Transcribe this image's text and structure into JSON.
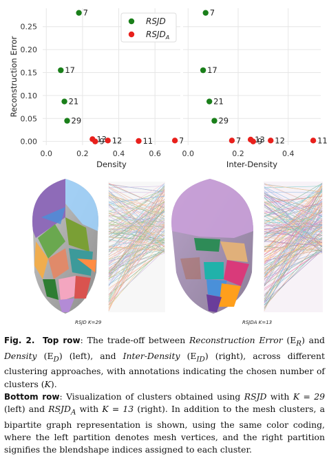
{
  "chart_data": [
    {
      "type": "scatter",
      "title": "",
      "xlabel": "Density",
      "ylabel": "Reconstruction Error",
      "xlim": [
        -0.02,
        0.74
      ],
      "ylim": [
        -0.008,
        0.29
      ],
      "xticks": [
        "0.0",
        "0.2",
        "0.4",
        "0.6"
      ],
      "yticks": [
        "0.00",
        "0.05",
        "0.10",
        "0.15",
        "0.20",
        "0.25"
      ],
      "grid": true,
      "legend_position": "top-right",
      "series": [
        {
          "name": "RSJD",
          "color": "#1a7f1a",
          "points": [
            {
              "x": 0.18,
              "y": 0.28,
              "label": "7"
            },
            {
              "x": 0.08,
              "y": 0.155,
              "label": "17"
            },
            {
              "x": 0.1,
              "y": 0.087,
              "label": "21"
            },
            {
              "x": 0.115,
              "y": 0.045,
              "label": "29"
            }
          ]
        },
        {
          "name": "RSJD_A",
          "color": "#e8201c",
          "points": [
            {
              "x": 0.255,
              "y": 0.005,
              "label": "13"
            },
            {
              "x": 0.27,
              "y": 0.0,
              "label": "9"
            },
            {
              "x": 0.34,
              "y": 0.002,
              "label": "12"
            },
            {
              "x": 0.51,
              "y": 0.001,
              "label": "11"
            },
            {
              "x": 0.71,
              "y": 0.002,
              "label": "7"
            }
          ]
        }
      ]
    },
    {
      "type": "scatter",
      "title": "",
      "xlabel": "Inter-Density",
      "ylabel": "",
      "xlim": [
        -0.02,
        0.53
      ],
      "ylim": [
        -0.008,
        0.29
      ],
      "xticks": [
        "0.0",
        "0.2",
        "0.4"
      ],
      "grid": true,
      "series": [
        {
          "name": "RSJD",
          "color": "#1a7f1a",
          "points": [
            {
              "x": 0.07,
              "y": 0.28,
              "label": "7"
            },
            {
              "x": 0.06,
              "y": 0.155,
              "label": "17"
            },
            {
              "x": 0.085,
              "y": 0.087,
              "label": "21"
            },
            {
              "x": 0.105,
              "y": 0.045,
              "label": "29"
            }
          ]
        },
        {
          "name": "RSJD_A",
          "color": "#e8201c",
          "points": [
            {
              "x": 0.175,
              "y": 0.002,
              "label": "7"
            },
            {
              "x": 0.25,
              "y": 0.004,
              "label": "13"
            },
            {
              "x": 0.26,
              "y": 0.0,
              "label": "9"
            },
            {
              "x": 0.33,
              "y": 0.002,
              "label": "12"
            },
            {
              "x": 0.5,
              "y": 0.002,
              "label": "11"
            }
          ]
        }
      ]
    }
  ],
  "legend": {
    "items": [
      {
        "label": "RSJD",
        "color": "#1a7f1a"
      },
      {
        "label": "RSJD",
        "sub": "A",
        "color": "#e8201c"
      }
    ]
  },
  "images": {
    "left_label": "RSJD K=29",
    "right_label": "RSJDA K=13",
    "left_palette": [
      "#8e6bb8",
      "#6aa84f",
      "#e08a6a",
      "#f4a6c0",
      "#3c9a9a",
      "#d9534f",
      "#f0ad4e",
      "#9fd3ff",
      "#7a9f35",
      "#b38bd6",
      "#2e7d32",
      "#ff8c42",
      "#4a90d9"
    ],
    "right_palette": [
      "#c9a0d8",
      "#e0b07a",
      "#d93a7a",
      "#2e8b57",
      "#ff9f1c",
      "#4a90d9",
      "#6a3d9a",
      "#20b2aa",
      "#b35a2c"
    ]
  },
  "caption": {
    "fig": "Fig. 2.",
    "top_row": "Top row",
    "bottom_row": "Bottom row",
    "p1": ": The trade-off between ",
    "rec_error": "Reconstruction Error",
    "er": "(E",
    "er_sub": "R",
    "p2": ") and ",
    "density": "Density",
    "ed": "(E",
    "ed_sub": "D",
    "p3": ") (left), and ",
    "inter_density": "Inter-Density",
    "eid": "(E",
    "eid_sub": "ID",
    "p4": ") (right), across different clustering approaches, with annotations indicating the chosen number of clusters (",
    "k": "K",
    "p5": ").",
    "p6": ": Visualization of clusters obtained using ",
    "rsjd": "RSJD",
    "p7": " with ",
    "k29": "K = 29",
    "p8": " (left) and ",
    "rsjda": "RSJD",
    "rsjda_sub": "A",
    "p9": " with ",
    "k13": "K = 13",
    "p10": " (right). In addition to the mesh clusters, a bipartite graph representation is shown, using the same color coding, where the left partition denotes mesh vertices, and the right partition signifies the blendshape indices assigned to each cluster."
  }
}
